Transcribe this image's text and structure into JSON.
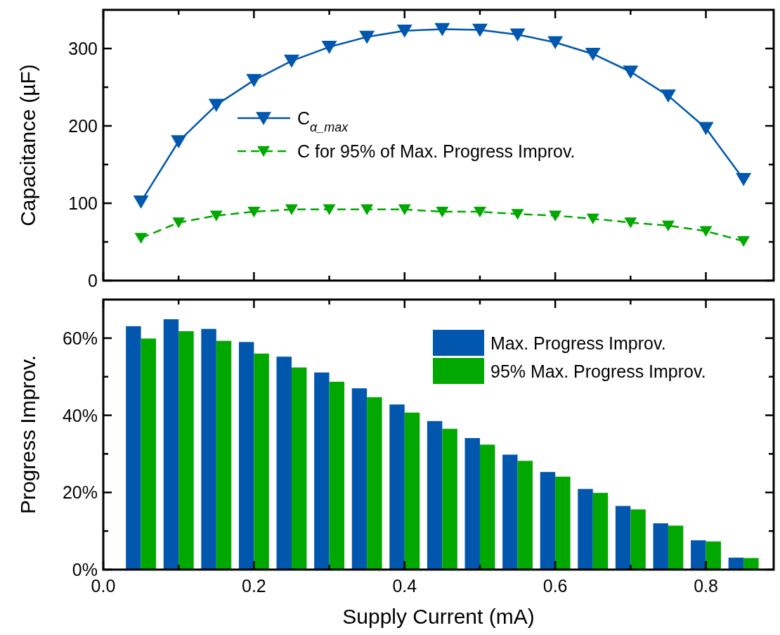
{
  "chart_data": [
    {
      "type": "line",
      "ylabel": "Capacitance (µF)",
      "x": [
        0.05,
        0.1,
        0.15,
        0.2,
        0.25,
        0.3,
        0.35,
        0.4,
        0.45,
        0.5,
        0.55,
        0.6,
        0.65,
        0.7,
        0.75,
        0.8,
        0.85
      ],
      "series": [
        {
          "name": "C$_{α_max}$",
          "color": "#0057ad",
          "line_style": "solid",
          "values": [
            102,
            180,
            227,
            259,
            284,
            302,
            315,
            323,
            325,
            324,
            318,
            308,
            293,
            270,
            239,
            197,
            131
          ]
        },
        {
          "name": "C for 95% of Max. Progress Improv.",
          "color": "#00a800",
          "line_style": "dashed",
          "values": [
            55,
            75,
            84,
            89,
            92,
            92,
            92,
            92,
            89,
            89,
            86,
            84,
            80,
            75,
            71,
            64,
            51
          ]
        }
      ],
      "marker": "triangle",
      "legend": "left",
      "tick_labels": "y",
      "xlim": [
        0,
        0.89
      ],
      "xticks": [
        {
          "value": 0,
          "label": null
        },
        {
          "value": 0.1,
          "label": null
        },
        {
          "value": 0.2,
          "label": null
        },
        {
          "value": 0.3,
          "label": null
        },
        {
          "value": 0.4,
          "label": null
        },
        {
          "value": 0.5,
          "label": null
        },
        {
          "value": 0.6,
          "label": null
        },
        {
          "value": 0.7,
          "label": null
        },
        {
          "value": 0.8,
          "label": null
        }
      ],
      "ylim": [
        0,
        350
      ],
      "yticks": [
        0,
        {
          "value": 50,
          "label": null
        },
        100,
        {
          "value": 150,
          "label": null
        },
        200,
        {
          "value": 250,
          "label": null
        },
        300
      ]
    },
    {
      "type": "bar",
      "xlabel": "Supply Current (mA)",
      "ylabel": "Progress Improv.",
      "x": [
        0.05,
        0.1,
        0.15,
        0.2,
        0.25,
        0.3,
        0.35,
        0.4,
        0.45,
        0.5,
        0.55,
        0.6,
        0.65,
        0.7,
        0.75,
        0.8,
        0.85
      ],
      "series": [
        {
          "name": "Max. Progress Improv.",
          "color": "#0057ad",
          "values": [
            63.1,
            64.9,
            62.4,
            59.0,
            55.2,
            51.1,
            47.0,
            42.8,
            38.5,
            34.1,
            29.8,
            25.3,
            20.9,
            16.5,
            12.0,
            7.6,
            3.1
          ]
        },
        {
          "name": "95% Max. Progress Improv.",
          "color": "#00a800",
          "values": [
            59.9,
            61.8,
            59.3,
            56.0,
            52.4,
            48.7,
            44.7,
            40.7,
            36.5,
            32.4,
            28.2,
            24.1,
            19.9,
            15.6,
            11.4,
            7.3,
            3.0
          ]
        }
      ],
      "legend": "top right",
      "xlim": [
        0,
        0.89
      ],
      "xticks": [
        {
          "value": 0,
          "label": "0.0"
        },
        {
          "value": 0.1,
          "label": null
        },
        {
          "value": 0.2,
          "label": "0.2"
        },
        {
          "value": 0.3,
          "label": null
        },
        {
          "value": 0.4,
          "label": "0.4"
        },
        {
          "value": 0.5,
          "label": null
        },
        {
          "value": 0.6,
          "label": "0.6"
        },
        {
          "value": 0.7,
          "label": null
        },
        {
          "value": 0.8,
          "label": "0.8"
        }
      ],
      "ylim": [
        0,
        70
      ],
      "yticks": [
        {
          "value": 0,
          "label": "0%"
        },
        {
          "value": 10,
          "label": null
        },
        {
          "value": 20,
          "label": "20%"
        },
        {
          "value": 30,
          "label": null
        },
        {
          "value": 40,
          "label": "40%"
        },
        {
          "value": 50,
          "label": null
        },
        {
          "value": 60,
          "label": "60%"
        }
      ]
    }
  ]
}
